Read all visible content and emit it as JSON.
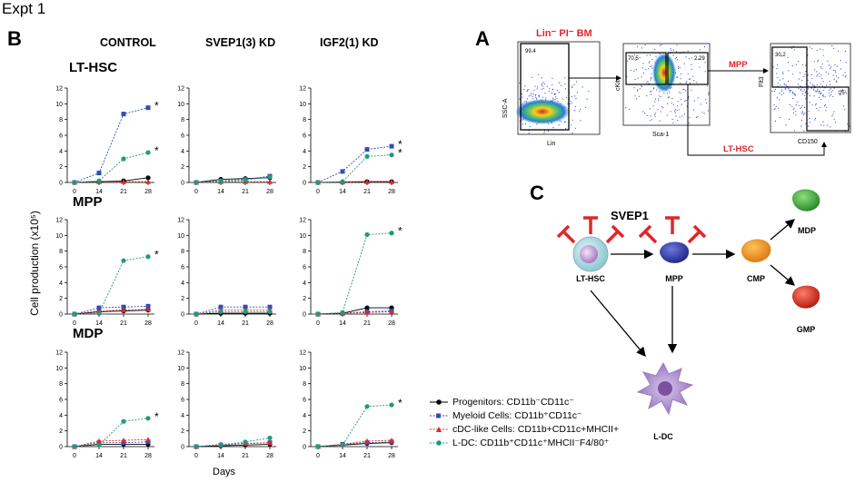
{
  "figure": {
    "title": "Expt 1",
    "panel_b_label": "B",
    "panel_a_label": "A",
    "panel_c_label": "C",
    "columns": [
      "CONTROL",
      "SVEP1(3) KD",
      "IGF2(1) KD"
    ],
    "rows": [
      "LT-HSC",
      "MPP",
      "MDP"
    ],
    "ylabel": "Cell production (x10⁵)",
    "xlabel": "Days"
  },
  "colors": {
    "progenitors": "#000000",
    "myeloid": "#2d4fb4",
    "cdc": "#e0262c",
    "ldc": "#1f9a7c",
    "red_label": "#e0262c"
  },
  "legend": {
    "items": [
      {
        "key": "progenitors",
        "label": "Progenitors: CD11b⁻CD11c⁻"
      },
      {
        "key": "myeloid",
        "label": "Myeloid Cells: CD11b⁺CD11c⁻"
      },
      {
        "key": "cdc",
        "label": "cDC-like Cells: CD11b+CD11c+MHCII+"
      },
      {
        "key": "ldc",
        "label": "L-DC: CD11b⁺CD11c⁺MHCII⁻F4/80⁺"
      }
    ]
  },
  "chart_data": [
    {
      "type": "line",
      "row": "LT-HSC",
      "column": "CONTROL",
      "x": [
        0,
        14,
        21,
        28
      ],
      "ylim": [
        0,
        12
      ],
      "yticks": [
        0,
        2,
        4,
        6,
        8,
        10,
        12
      ],
      "series": [
        {
          "name": "progenitors",
          "values": [
            0,
            0.1,
            0.2,
            0.6
          ]
        },
        {
          "name": "myeloid",
          "values": [
            0,
            1.2,
            8.7,
            9.5
          ]
        },
        {
          "name": "cdc",
          "values": [
            0,
            0.1,
            0.1,
            0.1
          ]
        },
        {
          "name": "ldc",
          "values": [
            0,
            0.2,
            3.0,
            3.8
          ]
        }
      ],
      "annotations": [
        {
          "series": "myeloid",
          "text": "*"
        },
        {
          "series": "ldc",
          "text": "*"
        }
      ]
    },
    {
      "type": "line",
      "row": "LT-HSC",
      "column": "SVEP1(3) KD",
      "x": [
        0,
        14,
        21,
        28
      ],
      "ylim": [
        0,
        12
      ],
      "yticks": [
        0,
        2,
        4,
        6,
        8,
        10,
        12
      ],
      "series": [
        {
          "name": "progenitors",
          "values": [
            0,
            0.4,
            0.5,
            0.6
          ]
        },
        {
          "name": "myeloid",
          "values": [
            0,
            0.2,
            0.4,
            0.8
          ]
        },
        {
          "name": "cdc",
          "values": [
            0,
            0.1,
            0.1,
            0.1
          ]
        },
        {
          "name": "ldc",
          "values": [
            0,
            0.2,
            0.3,
            0.7
          ]
        }
      ],
      "annotations": []
    },
    {
      "type": "line",
      "row": "LT-HSC",
      "column": "IGF2(1) KD",
      "x": [
        0,
        14,
        21,
        28
      ],
      "ylim": [
        0,
        12
      ],
      "yticks": [
        0,
        2,
        4,
        6,
        8,
        10,
        12
      ],
      "series": [
        {
          "name": "progenitors",
          "values": [
            0,
            0.05,
            0.1,
            0.1
          ]
        },
        {
          "name": "myeloid",
          "values": [
            0,
            1.4,
            4.2,
            4.6
          ]
        },
        {
          "name": "cdc",
          "values": [
            0,
            0.05,
            0.1,
            0.1
          ]
        },
        {
          "name": "ldc",
          "values": [
            0,
            0.1,
            3.3,
            3.5
          ]
        }
      ],
      "annotations": [
        {
          "series": "myeloid",
          "text": "*"
        },
        {
          "series": "ldc",
          "text": "*"
        }
      ]
    },
    {
      "type": "line",
      "row": "MPP",
      "column": "CONTROL",
      "x": [
        0,
        14,
        21,
        28
      ],
      "ylim": [
        0,
        12
      ],
      "yticks": [
        0,
        2,
        4,
        6,
        8,
        10,
        12
      ],
      "series": [
        {
          "name": "progenitors",
          "values": [
            0,
            0.3,
            0.4,
            0.5
          ]
        },
        {
          "name": "myeloid",
          "values": [
            0,
            0.8,
            0.9,
            1.0
          ]
        },
        {
          "name": "cdc",
          "values": [
            0,
            0.4,
            0.5,
            0.6
          ]
        },
        {
          "name": "ldc",
          "values": [
            0,
            0.1,
            6.8,
            7.3
          ]
        }
      ],
      "annotations": [
        {
          "series": "ldc",
          "text": "*"
        }
      ]
    },
    {
      "type": "line",
      "row": "MPP",
      "column": "SVEP1(3) KD",
      "x": [
        0,
        14,
        21,
        28
      ],
      "ylim": [
        0,
        12
      ],
      "yticks": [
        0,
        2,
        4,
        6,
        8,
        10,
        12
      ],
      "series": [
        {
          "name": "progenitors",
          "values": [
            0,
            0.1,
            0.1,
            0.1
          ]
        },
        {
          "name": "myeloid",
          "values": [
            0,
            0.9,
            0.9,
            0.9
          ]
        },
        {
          "name": "cdc",
          "values": [
            0,
            0.5,
            0.5,
            0.5
          ]
        },
        {
          "name": "ldc",
          "values": [
            0,
            0.3,
            0.3,
            0.3
          ]
        }
      ],
      "annotations": []
    },
    {
      "type": "line",
      "row": "MPP",
      "column": "IGF2(1) KD",
      "x": [
        0,
        14,
        21,
        28
      ],
      "ylim": [
        0,
        12
      ],
      "yticks": [
        0,
        2,
        4,
        6,
        8,
        10,
        12
      ],
      "series": [
        {
          "name": "progenitors",
          "values": [
            0,
            0.1,
            0.8,
            0.8
          ]
        },
        {
          "name": "myeloid",
          "values": [
            0,
            0.1,
            0.3,
            0.4
          ]
        },
        {
          "name": "cdc",
          "values": [
            0,
            0.1,
            0.2,
            0.3
          ]
        },
        {
          "name": "ldc",
          "values": [
            0,
            0.2,
            10.1,
            10.3
          ]
        }
      ],
      "annotations": [
        {
          "series": "ldc",
          "text": "*"
        }
      ]
    },
    {
      "type": "line",
      "row": "MDP",
      "column": "CONTROL",
      "x": [
        0,
        14,
        21,
        28
      ],
      "ylim": [
        0,
        12
      ],
      "yticks": [
        0,
        2,
        4,
        6,
        8,
        10,
        12
      ],
      "series": [
        {
          "name": "progenitors",
          "values": [
            0,
            0.3,
            0.3,
            0.3
          ]
        },
        {
          "name": "myeloid",
          "values": [
            0,
            0.5,
            0.5,
            0.6
          ]
        },
        {
          "name": "cdc",
          "values": [
            0,
            0.7,
            0.8,
            0.9
          ]
        },
        {
          "name": "ldc",
          "values": [
            0,
            0.2,
            3.2,
            3.6
          ]
        }
      ],
      "annotations": [
        {
          "series": "ldc",
          "text": "*"
        }
      ]
    },
    {
      "type": "line",
      "row": "MDP",
      "column": "SVEP1(3) KD",
      "x": [
        0,
        14,
        21,
        28
      ],
      "ylim": [
        0,
        12
      ],
      "yticks": [
        0,
        2,
        4,
        6,
        8,
        10,
        12
      ],
      "series": [
        {
          "name": "progenitors",
          "values": [
            0,
            0.1,
            0.2,
            0.3
          ]
        },
        {
          "name": "myeloid",
          "values": [
            0,
            0.2,
            0.4,
            0.5
          ]
        },
        {
          "name": "cdc",
          "values": [
            0,
            0.3,
            0.4,
            0.5
          ]
        },
        {
          "name": "ldc",
          "values": [
            0,
            0.2,
            0.6,
            1.1
          ]
        }
      ],
      "annotations": []
    },
    {
      "type": "line",
      "row": "MDP",
      "column": "IGF2(1) KD",
      "x": [
        0,
        14,
        21,
        28
      ],
      "ylim": [
        0,
        12
      ],
      "yticks": [
        0,
        2,
        4,
        6,
        8,
        10,
        12
      ],
      "series": [
        {
          "name": "progenitors",
          "values": [
            0,
            0.2,
            0.4,
            0.5
          ]
        },
        {
          "name": "myeloid",
          "values": [
            0,
            0.3,
            0.5,
            0.6
          ]
        },
        {
          "name": "cdc",
          "values": [
            0,
            0.3,
            0.7,
            0.8
          ]
        },
        {
          "name": "ldc",
          "values": [
            0,
            0.2,
            5.1,
            5.3
          ]
        }
      ],
      "annotations": [
        {
          "series": "ldc",
          "text": "*"
        }
      ]
    }
  ],
  "panel_a": {
    "title": "Lin⁻ PI⁻ BM",
    "plot1": {
      "ylabel": "SSC-A",
      "xlabel": "Lin",
      "gate_value": "99.4"
    },
    "plot2": {
      "ylabel": "cKit",
      "xlabel": "Sca-1",
      "gate_left": "70.5",
      "gate_right": "2.29"
    },
    "plot3": {
      "ylabel": "Flt3",
      "xlabel": "CD150",
      "gate_top": "30.2",
      "gate_bottom": "25"
    },
    "arrow_mpp": "MPP",
    "arrow_lthsc": "LT-HSC"
  },
  "panel_c": {
    "inhibitor_label": "SVEP1",
    "nodes": {
      "lthsc": "LT-HSC",
      "mpp": "MPP",
      "cmp": "CMP",
      "mdp": "MDP",
      "gmp": "GMP",
      "ldc": "L-DC"
    }
  }
}
